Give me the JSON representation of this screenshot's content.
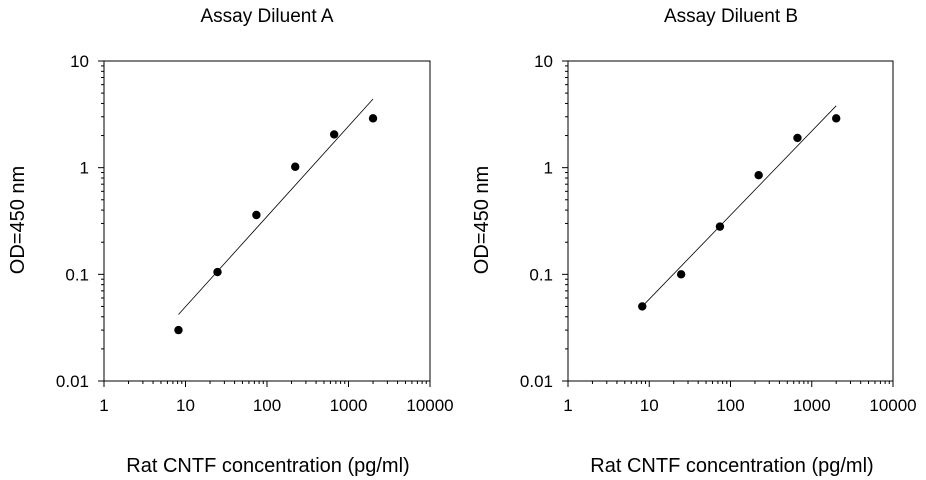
{
  "chart_data": [
    {
      "type": "scatter",
      "title": "Assay Diluent A",
      "xlabel": "Rat CNTF concentration (pg/ml)",
      "ylabel": "OD=450 nm",
      "xscale": "log",
      "yscale": "log",
      "xlim": [
        1,
        10000
      ],
      "ylim": [
        0.01,
        10
      ],
      "xticks": [
        "1",
        "10",
        "100",
        "1000",
        "10000"
      ],
      "yticks": [
        "0.01",
        "0.1",
        "1",
        "10"
      ],
      "grid": false,
      "legend": "none",
      "series": [
        {
          "x": [
            8.2,
            24.7,
            74.1,
            222,
            667,
            2000
          ],
          "y": [
            0.03,
            0.105,
            0.36,
            1.02,
            2.05,
            2.9
          ]
        }
      ],
      "fit_line": {
        "x": [
          8.2,
          2000
        ],
        "y": [
          0.042,
          4.4
        ]
      }
    },
    {
      "type": "scatter",
      "title": "Assay Diluent B",
      "xlabel": "Rat CNTF concentration (pg/ml)",
      "ylabel": "OD=450 nm",
      "xscale": "log",
      "yscale": "log",
      "xlim": [
        1,
        10000
      ],
      "ylim": [
        0.01,
        10
      ],
      "xticks": [
        "1",
        "10",
        "100",
        "1000",
        "10000"
      ],
      "yticks": [
        "0.01",
        "0.1",
        "1",
        "10"
      ],
      "grid": false,
      "legend": "none",
      "series": [
        {
          "x": [
            8.2,
            24.7,
            74.1,
            222,
            667,
            2000
          ],
          "y": [
            0.05,
            0.1,
            0.28,
            0.85,
            1.9,
            2.9
          ]
        }
      ],
      "fit_line": {
        "x": [
          8.2,
          2000
        ],
        "y": [
          0.05,
          3.8
        ]
      }
    }
  ]
}
